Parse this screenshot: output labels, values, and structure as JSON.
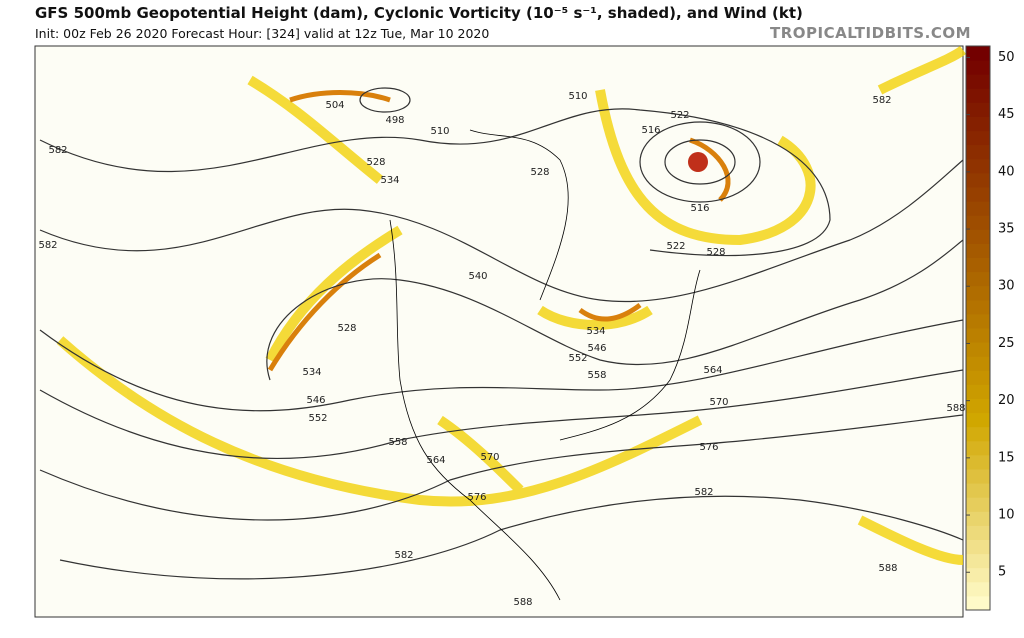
{
  "header": {
    "title": "GFS 500mb Geopotential Height (dam), Cyclonic Vorticity (10⁻⁵ s⁻¹, shaded), and Wind (kt)",
    "subtitle": "Init: 00z Feb 26 2020   Forecast Hour: [324]   valid at 12z Tue, Mar 10 2020",
    "site": "TROPICALTIDBITS.COM"
  },
  "colorbar": {
    "lim": [
      1.7,
      51
    ],
    "ticks": [
      5,
      10,
      15,
      20,
      25,
      30,
      35,
      40,
      45,
      50
    ]
  },
  "contour_labels": [
    582,
    504,
    498,
    510,
    528,
    534,
    510,
    516,
    522,
    528,
    516,
    522,
    528,
    582,
    582,
    540,
    528,
    534,
    546,
    552,
    558,
    534,
    546,
    552,
    564,
    570,
    588,
    558,
    564,
    570,
    576,
    576,
    582,
    582,
    588,
    588
  ]
}
